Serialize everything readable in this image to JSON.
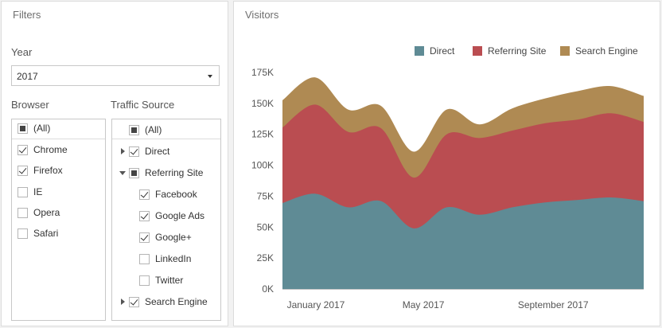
{
  "filters": {
    "title": "Filters",
    "year_label": "Year",
    "year_value": "2017",
    "browser_label": "Browser",
    "traffic_label": "Traffic Source",
    "browsers": [
      {
        "label": "(All)",
        "state": "indeterminate"
      },
      {
        "label": "Chrome",
        "state": "checked"
      },
      {
        "label": "Firefox",
        "state": "checked"
      },
      {
        "label": "IE",
        "state": "unchecked"
      },
      {
        "label": "Opera",
        "state": "unchecked"
      },
      {
        "label": "Safari",
        "state": "unchecked"
      }
    ],
    "traffic": [
      {
        "label": "(All)",
        "state": "indeterminate",
        "level": 0,
        "expander": "none"
      },
      {
        "label": "Direct",
        "state": "checked",
        "level": 0,
        "expander": "collapsed"
      },
      {
        "label": "Referring Site",
        "state": "indeterminate",
        "level": 0,
        "expander": "expanded"
      },
      {
        "label": "Facebook",
        "state": "checked",
        "level": 1,
        "expander": "none"
      },
      {
        "label": "Google Ads",
        "state": "checked",
        "level": 1,
        "expander": "none"
      },
      {
        "label": "Google+",
        "state": "checked",
        "level": 1,
        "expander": "none"
      },
      {
        "label": "LinkedIn",
        "state": "unchecked",
        "level": 1,
        "expander": "none"
      },
      {
        "label": "Twitter",
        "state": "unchecked",
        "level": 1,
        "expander": "none"
      },
      {
        "label": "Search Engine",
        "state": "checked",
        "level": 0,
        "expander": "collapsed"
      }
    ]
  },
  "visitors": {
    "title": "Visitors",
    "legend": [
      {
        "name": "Direct",
        "color": "#5f8b95"
      },
      {
        "name": "Referring Site",
        "color": "#ba4d51"
      },
      {
        "name": "Search Engine",
        "color": "#af8a53"
      }
    ]
  },
  "chart_data": {
    "type": "area",
    "stacked": true,
    "x_tick_labels": [
      "January 2017",
      "May 2017",
      "September 2017"
    ],
    "y_tick_labels": [
      "0K",
      "25K",
      "50K",
      "75K",
      "100K",
      "125K",
      "150K",
      "175K"
    ],
    "ylim": [
      0,
      175000
    ],
    "grid": false,
    "legend_position": "top-right",
    "series": [
      {
        "name": "Direct",
        "color": "#5f8b95",
        "values": [
          69500,
          77000,
          66000,
          71000,
          49000,
          66000,
          60000,
          66000,
          70000,
          72000,
          74000,
          71000
        ]
      },
      {
        "name": "Referring Site",
        "color": "#ba4d51",
        "values": [
          61000,
          72000,
          61000,
          59000,
          41000,
          59000,
          62000,
          62000,
          64000,
          65000,
          68000,
          64000
        ]
      },
      {
        "name": "Search Engine",
        "color": "#af8a53",
        "values": [
          22000,
          22000,
          18000,
          18000,
          21000,
          20000,
          11000,
          18000,
          20000,
          23000,
          22000,
          21000
        ]
      }
    ]
  }
}
